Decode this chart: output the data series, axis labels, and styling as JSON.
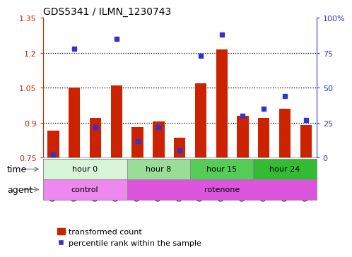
{
  "title": "GDS5341 / ILMN_1230743",
  "samples": [
    "GSM567521",
    "GSM567522",
    "GSM567523",
    "GSM567524",
    "GSM567532",
    "GSM567533",
    "GSM567534",
    "GSM567535",
    "GSM567536",
    "GSM567537",
    "GSM567538",
    "GSM567539",
    "GSM567540"
  ],
  "transformed_count": [
    0.865,
    1.05,
    0.92,
    1.06,
    0.88,
    0.905,
    0.835,
    1.07,
    1.215,
    0.93,
    0.92,
    0.96,
    0.89
  ],
  "percentile_rank": [
    2,
    78,
    22,
    85,
    12,
    22,
    5,
    73,
    88,
    30,
    35,
    44,
    27
  ],
  "bar_bottom": 0.75,
  "ylim_left": [
    0.75,
    1.35
  ],
  "ylim_right": [
    0,
    100
  ],
  "yticks_left": [
    0.75,
    0.9,
    1.05,
    1.2,
    1.35
  ],
  "yticks_right": [
    0,
    25,
    50,
    75,
    100
  ],
  "ytick_labels_right": [
    "0",
    "25",
    "50",
    "75",
    "100%"
  ],
  "bar_color": "#cc2200",
  "dot_color": "#3333cc",
  "time_groups": [
    {
      "label": "hour 0",
      "start": 0,
      "end": 4,
      "color": "#d9f5d9"
    },
    {
      "label": "hour 8",
      "start": 4,
      "end": 7,
      "color": "#99dd99"
    },
    {
      "label": "hour 15",
      "start": 7,
      "end": 10,
      "color": "#55cc55"
    },
    {
      "label": "hour 24",
      "start": 10,
      "end": 13,
      "color": "#33bb33"
    }
  ],
  "agent_groups": [
    {
      "label": "control",
      "start": 0,
      "end": 4,
      "color": "#ee88ee"
    },
    {
      "label": "rotenone",
      "start": 4,
      "end": 13,
      "color": "#dd55dd"
    }
  ],
  "time_label": "time",
  "agent_label": "agent",
  "legend_bar": "transformed count",
  "legend_dot": "percentile rank within the sample",
  "bar_width": 0.55
}
